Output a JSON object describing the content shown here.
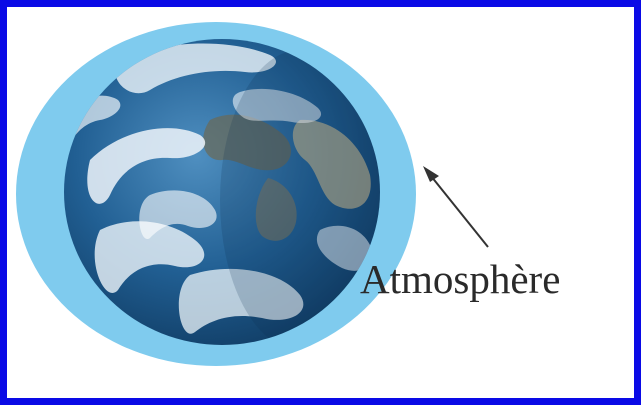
{
  "diagram": {
    "label": "Atmosphère",
    "colors": {
      "border": "#0a0ae6",
      "atmosphere": "#7fcbee",
      "ocean": "#1d5f8c",
      "clouds": "#eef5fa",
      "arrow": "#333333"
    },
    "icons": [
      "earth-globe",
      "atmosphere-ring",
      "pointer-arrow"
    ]
  }
}
